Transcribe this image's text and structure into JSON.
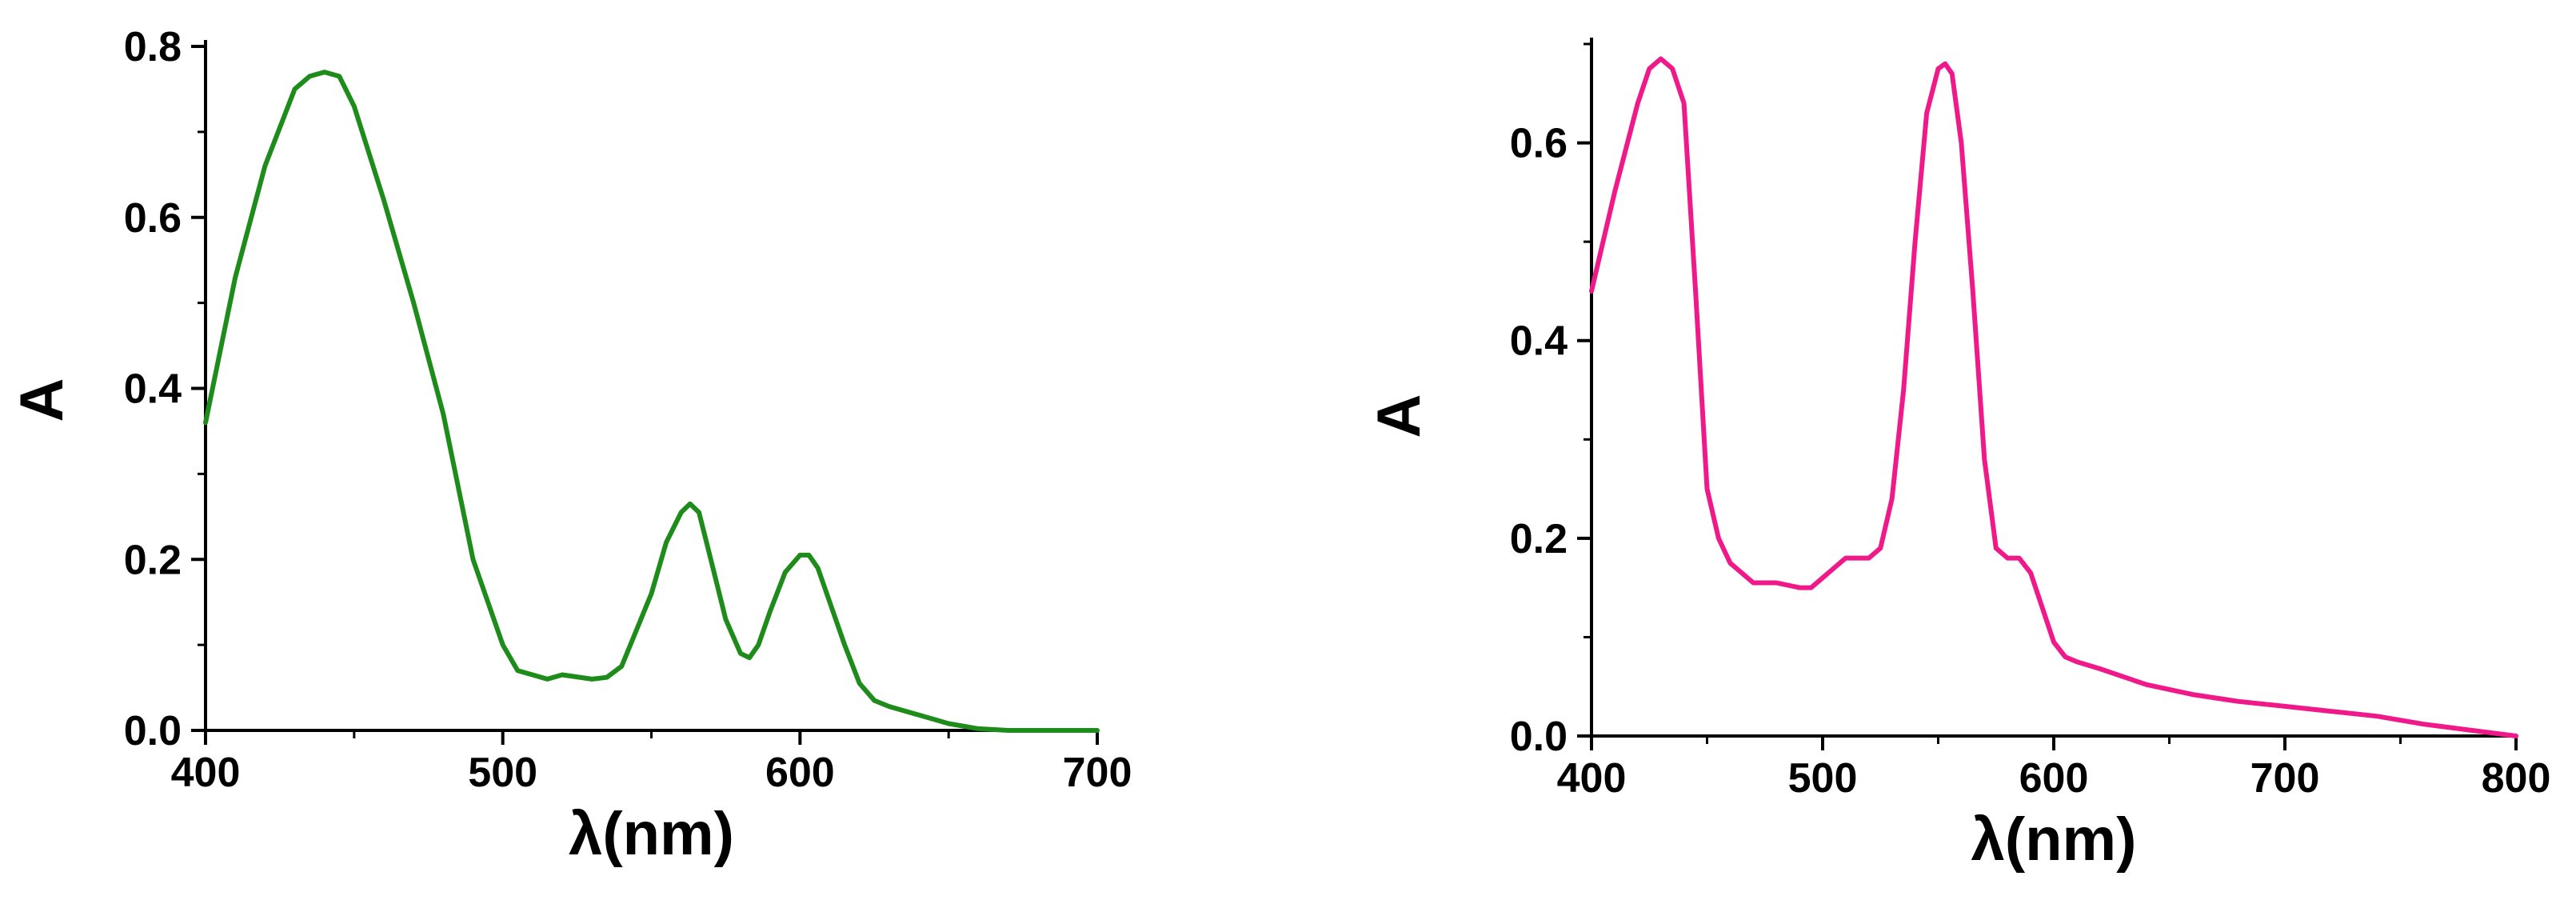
{
  "chart_data": [
    {
      "type": "line",
      "xlabel": "λ(nm)",
      "ylabel": "A",
      "xlim": [
        400,
        700
      ],
      "ylim": [
        0,
        0.8
      ],
      "xticks": [
        400,
        500,
        600,
        700
      ],
      "yticks": [
        0.0,
        0.2,
        0.4,
        0.6,
        0.8
      ],
      "xtick_labels": [
        "400",
        "500",
        "600",
        "700"
      ],
      "ytick_labels": [
        "0.0",
        "0.2",
        "0.4",
        "0.6",
        "0.8"
      ],
      "grid": false,
      "color": "#1e8c1a",
      "series": [
        {
          "x": [
            400,
            410,
            420,
            430,
            435,
            440,
            445,
            450,
            460,
            470,
            480,
            490,
            500,
            505,
            510,
            515,
            520,
            530,
            535,
            540,
            550,
            555,
            560,
            563,
            566,
            570,
            575,
            580,
            583,
            586,
            590,
            595,
            600,
            603,
            606,
            610,
            615,
            620,
            625,
            630,
            640,
            650,
            660,
            670,
            680,
            690,
            700
          ],
          "y": [
            0.36,
            0.53,
            0.66,
            0.75,
            0.765,
            0.77,
            0.765,
            0.73,
            0.62,
            0.5,
            0.37,
            0.2,
            0.1,
            0.07,
            0.065,
            0.06,
            0.065,
            0.06,
            0.062,
            0.075,
            0.16,
            0.22,
            0.255,
            0.265,
            0.255,
            0.2,
            0.13,
            0.09,
            0.085,
            0.1,
            0.14,
            0.185,
            0.205,
            0.205,
            0.19,
            0.15,
            0.1,
            0.055,
            0.035,
            0.028,
            0.018,
            0.008,
            0.002,
            0.0,
            0.0,
            0.0,
            0.0
          ]
        }
      ]
    },
    {
      "type": "line",
      "xlabel": "λ(nm)",
      "ylabel": "A",
      "xlim": [
        400,
        800
      ],
      "ylim": [
        0,
        0.7
      ],
      "xticks": [
        400,
        500,
        600,
        700,
        800
      ],
      "yticks": [
        0.0,
        0.2,
        0.4,
        0.6
      ],
      "xtick_labels": [
        "400",
        "500",
        "600",
        "700",
        "800"
      ],
      "ytick_labels": [
        "0.0",
        "0.2",
        "0.4",
        "0.6"
      ],
      "grid": false,
      "color": "#f0198a",
      "series": [
        {
          "x": [
            400,
            410,
            420,
            425,
            430,
            435,
            440,
            445,
            450,
            455,
            460,
            470,
            480,
            490,
            495,
            500,
            505,
            510,
            515,
            520,
            525,
            530,
            535,
            540,
            545,
            550,
            553,
            556,
            560,
            565,
            570,
            575,
            580,
            585,
            590,
            595,
            600,
            605,
            610,
            620,
            640,
            660,
            680,
            700,
            720,
            740,
            760,
            780,
            800
          ],
          "y": [
            0.45,
            0.55,
            0.64,
            0.675,
            0.685,
            0.675,
            0.64,
            0.45,
            0.25,
            0.2,
            0.175,
            0.155,
            0.155,
            0.15,
            0.15,
            0.16,
            0.17,
            0.18,
            0.18,
            0.18,
            0.19,
            0.24,
            0.35,
            0.5,
            0.63,
            0.675,
            0.68,
            0.67,
            0.6,
            0.45,
            0.28,
            0.19,
            0.18,
            0.18,
            0.165,
            0.13,
            0.095,
            0.08,
            0.075,
            0.068,
            0.052,
            0.042,
            0.035,
            0.03,
            0.025,
            0.02,
            0.012,
            0.006,
            0.0
          ]
        }
      ]
    }
  ]
}
